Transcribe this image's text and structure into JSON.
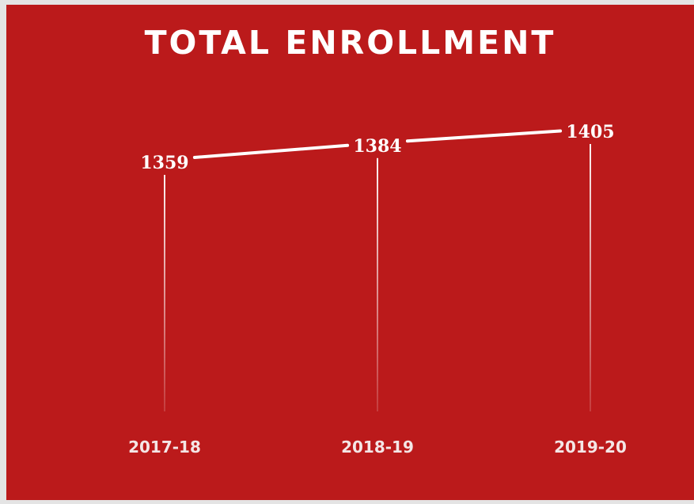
{
  "chart_data": {
    "type": "line",
    "title": "TOTAL ENROLLMENT",
    "xlabel": "",
    "ylabel": "",
    "categories": [
      "2017-18",
      "2018-19",
      "2019-20"
    ],
    "series": [
      {
        "values": [
          1359,
          1384,
          1405
        ]
      }
    ],
    "value_labels": [
      "1359",
      "1384",
      "1405"
    ],
    "grid": false,
    "legend": "none",
    "colors": {
      "background": "#bb1a1b",
      "line": "#ffffff",
      "drop_line": "#f4dada",
      "text": "#ffffff"
    }
  }
}
